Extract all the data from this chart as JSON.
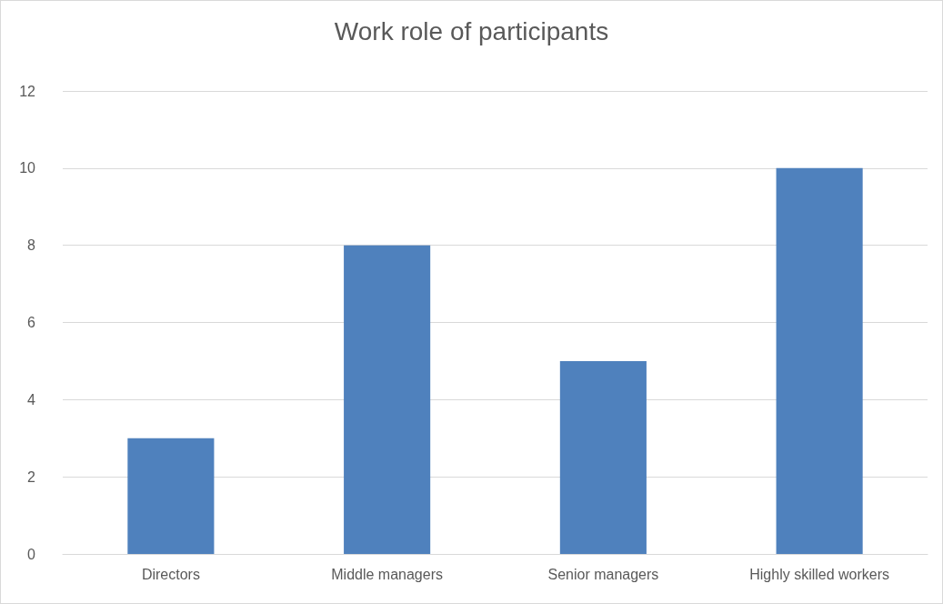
{
  "chart_data": {
    "type": "bar",
    "title": "Work role of participants",
    "categories": [
      "Directors",
      "Middle managers",
      "Senior managers",
      "Highly skilled workers"
    ],
    "values": [
      3,
      8,
      5,
      10
    ],
    "color": "#4f81bd",
    "ylim": [
      0,
      12
    ],
    "yticks": [
      0,
      2,
      4,
      6,
      8,
      10,
      12
    ],
    "grid": "y"
  }
}
